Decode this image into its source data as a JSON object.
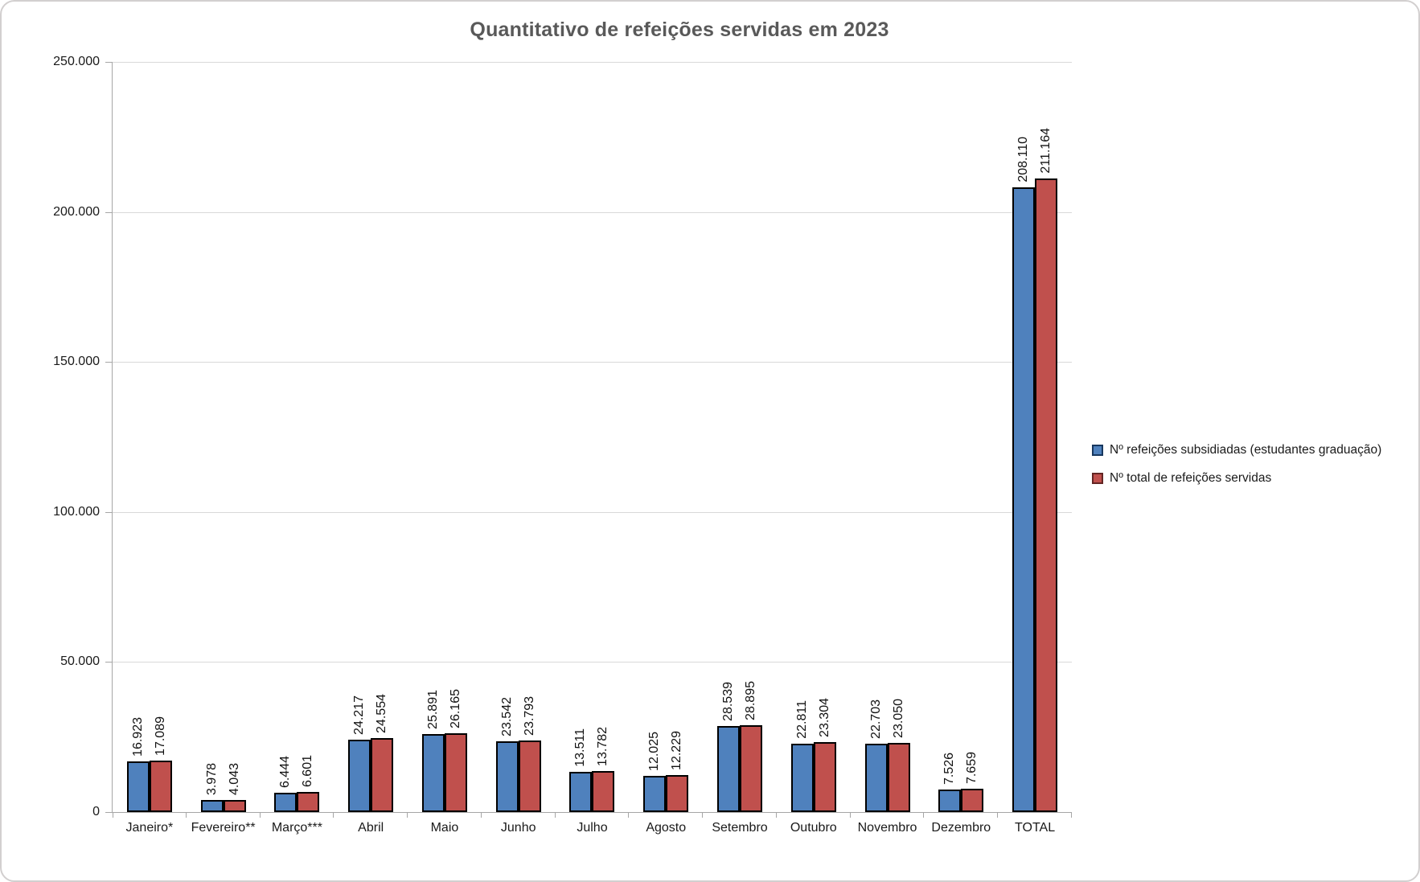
{
  "title": "Quantitativo de refeições servidas em 2023",
  "chart_data": {
    "type": "bar",
    "title": "Quantitativo de refeições servidas em 2023",
    "categories": [
      "Janeiro*",
      "Fevereiro**",
      "Março***",
      "Abril",
      "Maio",
      "Junho",
      "Julho",
      "Agosto",
      "Setembro",
      "Outubro",
      "Novembro",
      "Dezembro",
      "TOTAL"
    ],
    "series": [
      {
        "name": "Nº refeições subsidiadas (estudantes graduação)",
        "color": "#4F81BD",
        "swatch_border_color": "#17375E",
        "values": [
          16923,
          3978,
          6444,
          24217,
          25891,
          23542,
          13511,
          12025,
          28539,
          22811,
          22703,
          7526,
          208110
        ],
        "labels": [
          "16.923",
          "3.978",
          "6.444",
          "24.217",
          "25.891",
          "23.542",
          "13.511",
          "12.025",
          "28.539",
          "22.811",
          "22.703",
          "7.526",
          "208.110"
        ]
      },
      {
        "name": "Nº total de refeições servidas",
        "color": "#C0504D",
        "swatch_border_color": "#632523",
        "values": [
          17089,
          4043,
          6601,
          24554,
          26165,
          23793,
          13782,
          12229,
          28895,
          23304,
          23050,
          7659,
          211164
        ],
        "labels": [
          "17.089",
          "4.043",
          "6.601",
          "24.554",
          "26.165",
          "23.793",
          "13.782",
          "12.229",
          "28.895",
          "23.304",
          "23.050",
          "7.659",
          "211.164"
        ]
      }
    ],
    "ylim": [
      0,
      250000
    ],
    "yticks": [
      "250.000",
      "200.000",
      "150.000",
      "100.000",
      "50.000",
      "0"
    ],
    "grid": "horizontal",
    "legend_position": "right",
    "bar_border_color": "#000000"
  }
}
